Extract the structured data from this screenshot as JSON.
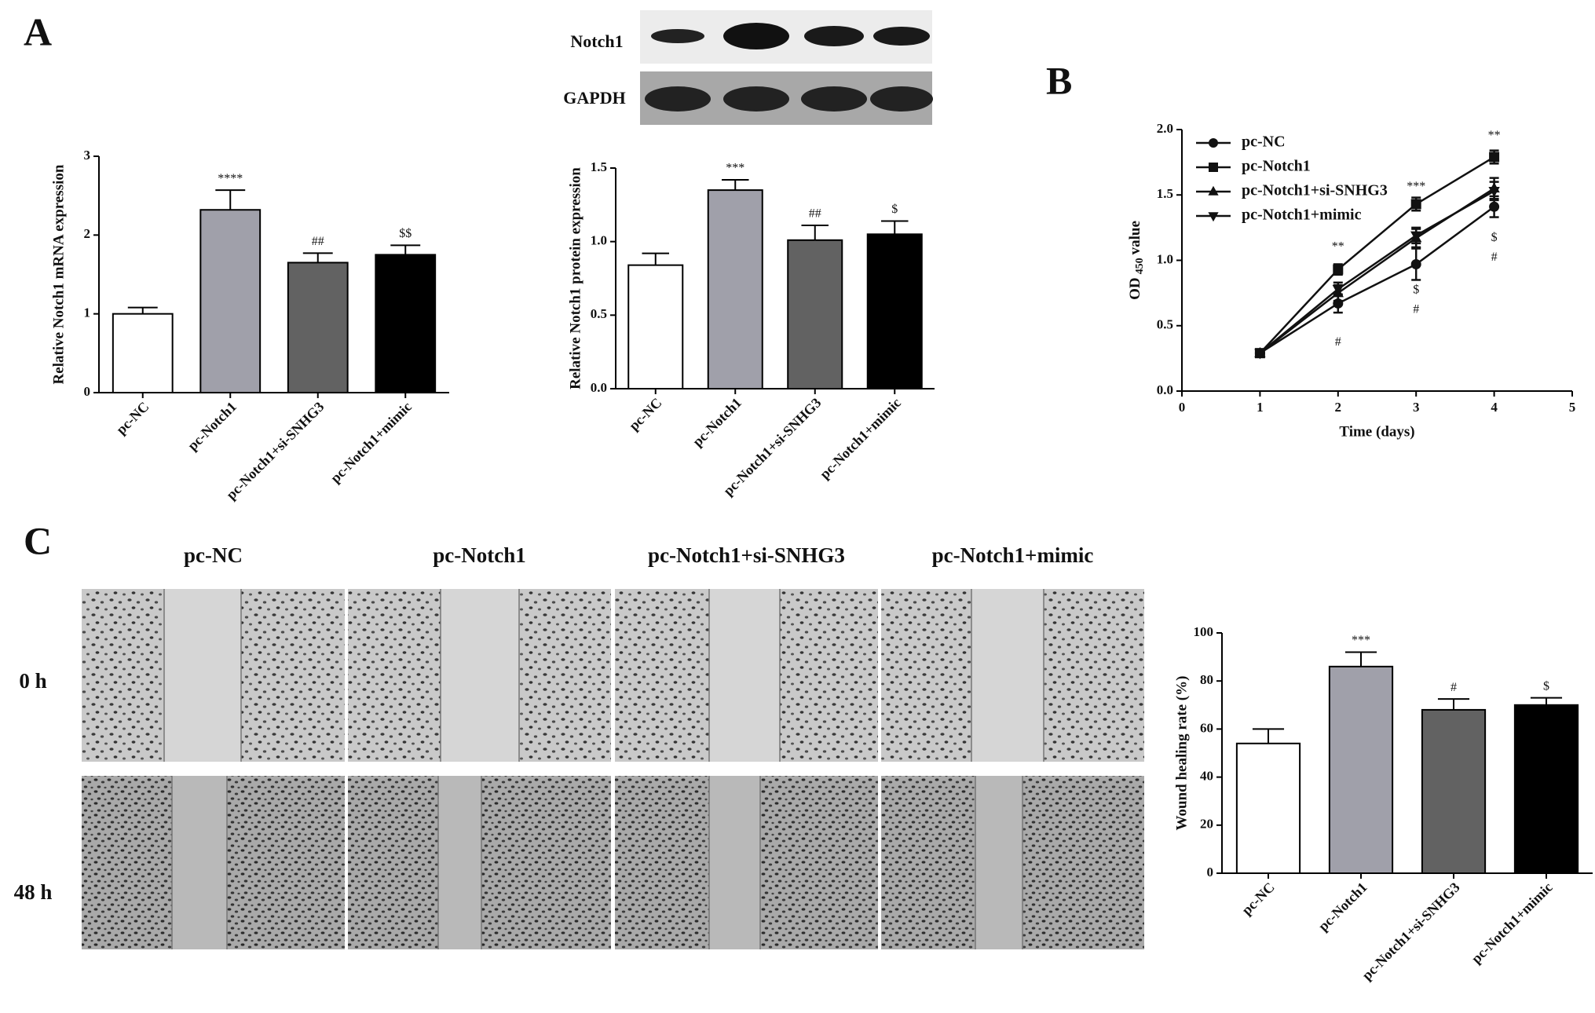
{
  "panel_labels": [
    "A",
    "B",
    "C"
  ],
  "blot": {
    "labels": [
      "Notch1",
      "GAPDH"
    ]
  },
  "wound_images": {
    "columns": [
      "pc-NC",
      "pc-Notch1",
      "pc-Notch1+si-SNHG3",
      "pc-Notch1+mimic"
    ],
    "rows": [
      "0 h",
      "48 h"
    ]
  },
  "chart_data": [
    {
      "type": "bar",
      "ylabel": "Relative Notch1 mRNA expression",
      "categories": [
        "pc-NC",
        "pc-Notch1",
        "pc-Notch1+si-SNHG3",
        "pc-Notch1+mimic"
      ],
      "values": [
        1.0,
        2.32,
        1.65,
        1.75
      ],
      "errors": [
        0.08,
        0.25,
        0.12,
        0.12
      ],
      "annotations": [
        null,
        "****",
        "##",
        "$$"
      ],
      "colors": [
        "#ffffff",
        "#a0a0aa",
        "#626262",
        "#000000"
      ],
      "ylim": [
        0,
        3
      ],
      "yticks": [
        0,
        1,
        2,
        3
      ]
    },
    {
      "type": "bar",
      "ylabel": "Relative Notch1 protein expression",
      "categories": [
        "pc-NC",
        "pc-Notch1",
        "pc-Notch1+si-SNHG3",
        "pc-Notch1+mimic"
      ],
      "values": [
        0.84,
        1.35,
        1.01,
        1.05
      ],
      "errors": [
        0.08,
        0.07,
        0.1,
        0.09
      ],
      "annotations": [
        null,
        "***",
        "##",
        "$"
      ],
      "colors": [
        "#ffffff",
        "#a0a0aa",
        "#626262",
        "#000000"
      ],
      "ylim": [
        0,
        1.5
      ],
      "yticks": [
        {
          "value": 0,
          "label": "0.0"
        },
        0.5,
        {
          "value": 1,
          "label": "1.0"
        },
        1.5
      ]
    },
    {
      "type": "line",
      "xlabel": "Time (days)",
      "ylabel_parts": [
        "OD",
        "450",
        "value"
      ],
      "x": [
        1,
        2,
        3,
        4
      ],
      "series": [
        {
          "name": "pc-NC",
          "color": "#111111",
          "marker": "circle",
          "values": [
            0.29,
            0.67,
            0.97,
            1.41
          ],
          "errors": [
            0.03,
            0.07,
            0.12,
            0.08
          ]
        },
        {
          "name": "pc-Notch1",
          "color": "#111111",
          "marker": "square",
          "values": [
            0.29,
            0.93,
            1.43,
            1.79
          ],
          "errors": [
            0.03,
            0.04,
            0.05,
            0.05
          ]
        },
        {
          "name": "pc-Notch1+si-SNHG3",
          "color": "#111111",
          "marker": "triangle-up",
          "values": [
            0.29,
            0.75,
            1.17,
            1.55
          ],
          "errors": [
            0.03,
            0.06,
            0.07,
            0.08
          ]
        },
        {
          "name": "pc-Notch1+mimic",
          "color": "#111111",
          "marker": "triangle-down",
          "values": [
            0.29,
            0.78,
            1.19,
            1.53
          ],
          "errors": [
            0.03,
            0.05,
            0.06,
            0.07
          ]
        }
      ],
      "annotations": [
        {
          "x": 2,
          "y": 1.1,
          "text": "**"
        },
        {
          "x": 3,
          "y": 1.56,
          "text": "***"
        },
        {
          "x": 4,
          "y": 1.95,
          "text": "**"
        },
        {
          "x": 2,
          "y": 0.37,
          "text": "#"
        },
        {
          "x": 3,
          "y": 0.77,
          "text": "$"
        },
        {
          "x": 3,
          "y": 0.62,
          "text": "#"
        },
        {
          "x": 4,
          "y": 1.17,
          "text": "$"
        },
        {
          "x": 4,
          "y": 1.02,
          "text": "#"
        }
      ],
      "xlim": [
        0,
        5
      ],
      "xticks": [
        0,
        1,
        2,
        3,
        4,
        5
      ],
      "ylim": [
        0,
        2
      ],
      "yticks": [
        {
          "value": 0,
          "label": "0.0"
        },
        0.5,
        {
          "value": 1,
          "label": "1.0"
        },
        1.5,
        {
          "value": 2,
          "label": "2.0"
        }
      ],
      "legend": "top-left"
    },
    {
      "type": "bar",
      "ylabel": "Wound healing rate (%)",
      "categories": [
        "pc-NC",
        "pc-Notch1",
        "pc-Notch1+si-SNHG3",
        "pc-Notch1+mimic"
      ],
      "values": [
        54,
        86,
        68,
        70
      ],
      "errors": [
        6,
        6,
        4.5,
        3
      ],
      "annotations": [
        null,
        "***",
        "#",
        "$"
      ],
      "colors": [
        "#ffffff",
        "#a0a0aa",
        "#626262",
        "#000000"
      ],
      "ylim": [
        0,
        100
      ],
      "yticks": [
        0,
        20,
        40,
        60,
        80,
        100
      ]
    }
  ]
}
